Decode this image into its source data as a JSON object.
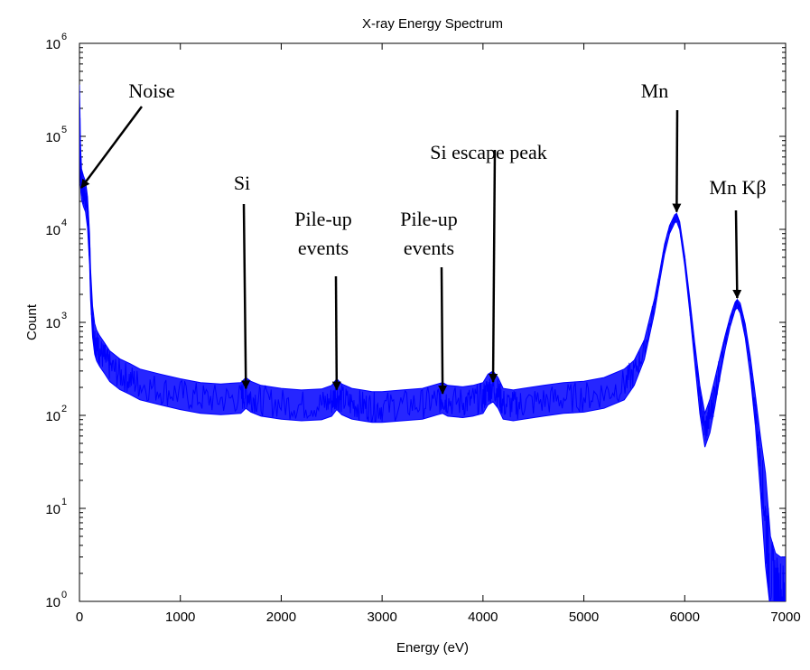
{
  "chart_data": {
    "type": "line",
    "title": "X-ray Energy Spectrum",
    "xlabel": "Energy (eV)",
    "ylabel": "Count",
    "xlim": [
      0,
      7000
    ],
    "ylim": [
      1,
      1000000
    ],
    "yscale": "log",
    "grid": false,
    "legend": "none",
    "x_ticks": [
      "0",
      "1000",
      "2000",
      "3000",
      "4000",
      "5000",
      "6000",
      "7000"
    ],
    "y_ticks": [
      {
        "base": "10",
        "exp": "0"
      },
      {
        "base": "10",
        "exp": "1"
      },
      {
        "base": "10",
        "exp": "2"
      },
      {
        "base": "10",
        "exp": "3"
      },
      {
        "base": "10",
        "exp": "4"
      },
      {
        "base": "10",
        "exp": "5"
      },
      {
        "base": "10",
        "exp": "6"
      }
    ],
    "series": [
      {
        "color": "#0000ff",
        "x": [
          0,
          10,
          20,
          40,
          60,
          80,
          100,
          110,
          130,
          150,
          170,
          200,
          250,
          300,
          400,
          500,
          600,
          800,
          1000,
          1200,
          1400,
          1600,
          1650,
          1700,
          1800,
          2000,
          2200,
          2400,
          2500,
          2550,
          2600,
          2700,
          2800,
          2900,
          3000,
          3200,
          3400,
          3550,
          3600,
          3650,
          3800,
          3900,
          4000,
          4050,
          4100,
          4150,
          4200,
          4300,
          4400,
          4600,
          4800,
          5000,
          5200,
          5400,
          5500,
          5600,
          5700,
          5750,
          5800,
          5850,
          5900,
          5920,
          5950,
          6000,
          6050,
          6100,
          6150,
          6200,
          6250,
          6300,
          6350,
          6400,
          6450,
          6500,
          6520,
          6550,
          6600,
          6650,
          6700,
          6750,
          6800,
          6850,
          6900,
          6950,
          7000
        ],
        "y": [
          200000,
          50000,
          30000,
          25000,
          22000,
          15000,
          6000,
          2500,
          1000,
          650,
          550,
          480,
          400,
          330,
          270,
          240,
          210,
          185,
          165,
          150,
          145,
          150,
          170,
          155,
          140,
          130,
          125,
          128,
          140,
          165,
          145,
          130,
          125,
          120,
          120,
          125,
          130,
          145,
          150,
          140,
          135,
          140,
          150,
          185,
          200,
          170,
          130,
          125,
          130,
          140,
          150,
          155,
          170,
          210,
          280,
          500,
          1500,
          3000,
          6000,
          10000,
          13000,
          13500,
          11000,
          4500,
          1500,
          450,
          150,
          70,
          100,
          180,
          330,
          600,
          1000,
          1500,
          1600,
          1400,
          800,
          330,
          110,
          30,
          8,
          2,
          1.5,
          1.2,
          1.0
        ],
        "band_upper": [
          1.8,
          1.7,
          1.5,
          1.5,
          1.5,
          1.5,
          1.5,
          1.5,
          1.5,
          1.5,
          1.5,
          1.5,
          1.5,
          1.5,
          1.5,
          1.5,
          1.5,
          1.5,
          1.5,
          1.5,
          1.5,
          1.5,
          1.5,
          1.5,
          1.5,
          1.5,
          1.5,
          1.5,
          1.5,
          1.5,
          1.5,
          1.5,
          1.5,
          1.5,
          1.5,
          1.5,
          1.5,
          1.5,
          1.5,
          1.5,
          1.5,
          1.5,
          1.5,
          1.5,
          1.5,
          1.5,
          1.5,
          1.5,
          1.5,
          1.5,
          1.5,
          1.5,
          1.5,
          1.5,
          1.4,
          1.3,
          1.2,
          1.15,
          1.15,
          1.1,
          1.1,
          1.1,
          1.1,
          1.15,
          1.2,
          1.3,
          1.4,
          1.5,
          1.5,
          1.4,
          1.3,
          1.2,
          1.15,
          1.1,
          1.1,
          1.15,
          1.2,
          1.3,
          1.5,
          2.0,
          3.0,
          2.5,
          2.2,
          2.5,
          3.0
        ],
        "band_lower": [
          0.6,
          0.6,
          0.7,
          0.7,
          0.7,
          0.7,
          0.7,
          0.7,
          0.7,
          0.7,
          0.7,
          0.7,
          0.7,
          0.7,
          0.7,
          0.7,
          0.7,
          0.7,
          0.7,
          0.7,
          0.7,
          0.7,
          0.7,
          0.7,
          0.7,
          0.7,
          0.7,
          0.7,
          0.7,
          0.7,
          0.7,
          0.7,
          0.7,
          0.7,
          0.7,
          0.7,
          0.7,
          0.7,
          0.7,
          0.7,
          0.7,
          0.7,
          0.7,
          0.7,
          0.7,
          0.7,
          0.7,
          0.7,
          0.7,
          0.7,
          0.7,
          0.7,
          0.7,
          0.7,
          0.75,
          0.8,
          0.85,
          0.9,
          0.9,
          0.9,
          0.9,
          0.9,
          0.9,
          0.9,
          0.85,
          0.8,
          0.7,
          0.65,
          0.65,
          0.7,
          0.8,
          0.85,
          0.9,
          0.9,
          0.9,
          0.9,
          0.85,
          0.8,
          0.7,
          0.5,
          0.3,
          0.4,
          0.5,
          0.4,
          0.3
        ]
      }
    ],
    "annotations": [
      {
        "text": "Noise",
        "x": 0,
        "y": 28000
      },
      {
        "text": "Si",
        "x": 1650,
        "y": 170
      },
      {
        "text": "Pile-up events",
        "x": 2550,
        "y": 165
      },
      {
        "text": "Pile-up events",
        "x": 3600,
        "y": 150
      },
      {
        "text": "Si escape peak",
        "x": 4100,
        "y": 200
      },
      {
        "text": "Mn",
        "x": 5920,
        "y": 13500
      },
      {
        "text": "Mn Kβ",
        "x": 6520,
        "y": 1600
      }
    ]
  }
}
